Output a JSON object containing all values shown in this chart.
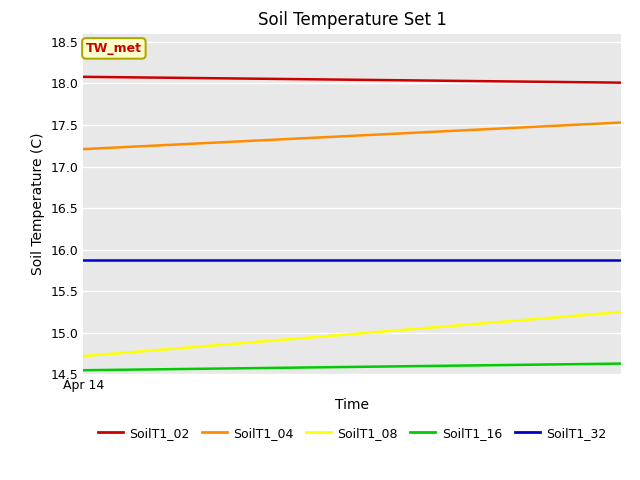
{
  "title": "Soil Temperature Set 1",
  "xlabel": "Time",
  "ylabel": "Soil Temperature (C)",
  "annotation_text": "TW_met",
  "annotation_bbox": {
    "boxstyle": "round,pad=0.3",
    "facecolor": "#ffffcc",
    "edgecolor": "#aaaa00",
    "linewidth": 1.5
  },
  "annotation_text_color": "#cc0000",
  "annotation_fontsize": 9,
  "annotation_fontweight": "bold",
  "xlim": [
    0,
    100
  ],
  "ylim": [
    14.5,
    18.6
  ],
  "yticks": [
    14.5,
    15.0,
    15.5,
    16.0,
    16.5,
    17.0,
    17.5,
    18.0,
    18.5
  ],
  "xticklabels": [
    "Apr 14"
  ],
  "background_color": "#e8e8e8",
  "grid_color": "#ffffff",
  "series": [
    {
      "label": "SoilT1_02",
      "color": "#cc0000",
      "x": [
        0,
        100
      ],
      "y": [
        18.08,
        18.01
      ]
    },
    {
      "label": "SoilT1_04",
      "color": "#ff8c00",
      "x": [
        0,
        100
      ],
      "y": [
        17.21,
        17.53
      ]
    },
    {
      "label": "SoilT1_08",
      "color": "#ffff00",
      "x": [
        0,
        100
      ],
      "y": [
        14.72,
        15.25
      ]
    },
    {
      "label": "SoilT1_16",
      "color": "#00cc00",
      "x": [
        0,
        100
      ],
      "y": [
        14.55,
        14.63
      ]
    },
    {
      "label": "SoilT1_32",
      "color": "#0000cc",
      "x": [
        0,
        100
      ],
      "y": [
        15.88,
        15.88
      ]
    }
  ],
  "legend_ncol": 5,
  "title_fontsize": 12,
  "axis_label_fontsize": 10,
  "tick_fontsize": 9
}
